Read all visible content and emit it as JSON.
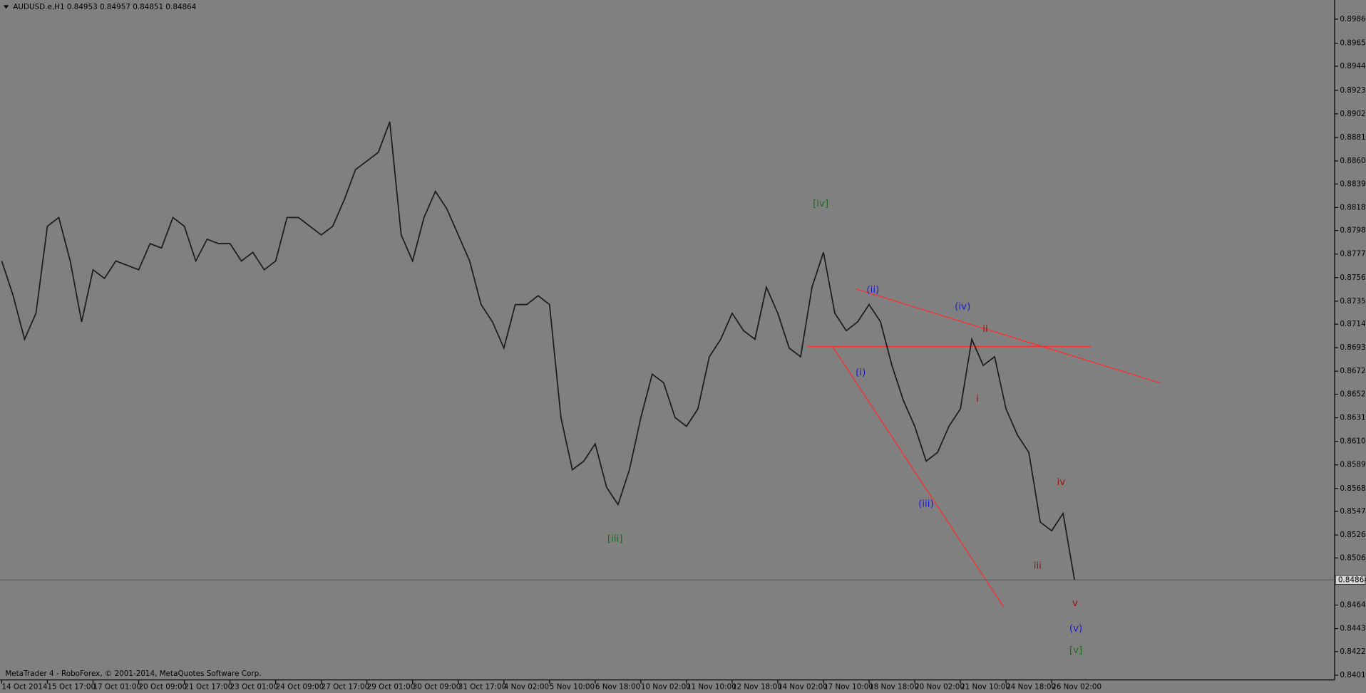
{
  "chart_data": {
    "type": "line",
    "title": "AUDUSD.e,H1  0.84953 0.84957 0.84851 0.84864",
    "footer": "MetaTrader 4 - RoboForex, © 2001-2014, MetaQuotes Software Corp.",
    "color": "#1a1a1a",
    "ylim": [
      0.8398,
      0.9002
    ],
    "yticks": [
      0.89865,
      {
        "value": 0.8965,
        "label": "0.89650"
      },
      0.89445,
      {
        "value": 0.8923,
        "label": "0.89230"
      },
      {
        "value": 0.8902,
        "label": "0.89020"
      },
      {
        "value": 0.8881,
        "label": "0.88810"
      },
      {
        "value": 0.886,
        "label": "0.88600"
      },
      0.88395,
      0.88185,
      {
        "value": 0.8798,
        "label": "0.87980"
      },
      {
        "value": 0.8777,
        "label": "0.87770"
      },
      {
        "value": 0.8756,
        "label": "0.87560"
      },
      {
        "value": 0.8735,
        "label": "0.87350"
      },
      0.87145,
      0.86935,
      0.86725,
      {
        "value": 0.8652,
        "label": "0.86520"
      },
      {
        "value": 0.8631,
        "label": "0.86310"
      },
      {
        "value": 0.861,
        "label": "0.86100"
      },
      {
        "value": 0.8589,
        "label": "0.85890"
      },
      {
        "value": 0.8568,
        "label": "0.85680"
      },
      0.85475,
      0.85265,
      {
        "value": 0.8506,
        "label": "0.85060"
      },
      {
        "value": 0.8464,
        "label": "0.84640"
      },
      {
        "value": 0.8443,
        "label": "0.84430"
      },
      0.84225,
      0.84015
    ],
    "grid": false,
    "categories": [
      "14 Oct 2014",
      null,
      null,
      null,
      "15 Oct 17:00",
      null,
      null,
      null,
      "17 Oct 01:00",
      null,
      null,
      null,
      "20 Oct 09:00",
      null,
      null,
      null,
      "21 Oct 17:00",
      null,
      null,
      null,
      "23 Oct 01:00",
      null,
      null,
      null,
      "24 Oct 09:00",
      null,
      null,
      null,
      "27 Oct 17:00",
      null,
      null,
      null,
      "29 Oct 01:00",
      null,
      null,
      null,
      "30 Oct 09:00",
      null,
      null,
      null,
      "31 Oct 17:00",
      null,
      null,
      null,
      "4 Nov 02:00",
      null,
      null,
      null,
      "5 Nov 10:00",
      null,
      null,
      null,
      "6 Nov 18:00",
      null,
      null,
      null,
      "10 Nov 02:00",
      null,
      null,
      null,
      "11 Nov 10:00",
      null,
      null,
      null,
      "12 Nov 18:00",
      null,
      null,
      null,
      "14 Nov 02:00",
      null,
      null,
      null,
      "17 Nov 10:00",
      null,
      null,
      null,
      "18 Nov 18:00",
      null,
      null,
      null,
      "20 Nov 02:00",
      null,
      null,
      null,
      "21 Nov 10:00",
      null,
      null,
      null,
      "24 Nov 18:00",
      null,
      null,
      null,
      "26 Nov 02:00",
      null,
      null
    ],
    "values": [
      0.87708,
      0.87398,
      0.8701,
      0.87242,
      0.88018,
      0.88096,
      0.87708,
      0.87165,
      0.8763,
      0.87553,
      0.87708,
      0.87669,
      0.8763,
      0.87863,
      0.87824,
      0.88096,
      0.88018,
      0.87708,
      0.87902,
      0.87863,
      0.87863,
      0.87708,
      0.87786,
      0.8763,
      0.87708,
      0.88096,
      0.88096,
      0.88018,
      0.87941,
      0.88018,
      0.88251,
      0.88523,
      0.886,
      0.88678,
      0.8895,
      0.87941,
      0.87708,
      0.88096,
      0.88329,
      0.88174,
      0.87941,
      0.87708,
      0.8732,
      0.87165,
      0.86932,
      0.8732,
      0.8732,
      0.87398,
      0.8732,
      0.86311,
      0.85846,
      0.85923,
      0.86078,
      0.8569,
      0.85535,
      0.85846,
      0.86311,
      0.86699,
      0.86622,
      0.86311,
      0.86234,
      0.86389,
      0.86854,
      0.8701,
      0.87242,
      0.87087,
      0.8701,
      0.87475,
      0.87242,
      0.86932,
      0.86854,
      0.87475,
      0.87786,
      0.87242,
      0.87087,
      0.87165,
      0.8732,
      0.87165,
      0.86777,
      0.86466,
      0.86234,
      0.85923,
      0.86001,
      0.86234,
      0.86389,
      0.8701,
      0.86777,
      0.86854,
      0.86389,
      0.86156,
      0.86001,
      0.8538,
      0.85302,
      0.85458,
      0.84864
    ],
    "annotations": [
      {
        "text": "[iv]",
        "color": "#1e6b1e"
      },
      {
        "text": "[iii]",
        "color": "#1e6b1e"
      },
      {
        "text": "(ii)",
        "color": "#1a1ad0"
      },
      {
        "text": "(i)",
        "color": "#1a1ad0"
      },
      {
        "text": "(iii)",
        "color": "#1a1ad0"
      },
      {
        "text": "(iv)",
        "color": "#1a1ad0"
      },
      {
        "text": "i",
        "color": "#9a1010"
      },
      {
        "text": "ii",
        "color": "#9a1010"
      },
      {
        "text": "iii",
        "color": "#9a1010"
      },
      {
        "text": "iv",
        "color": "#9a1010"
      },
      {
        "text": "v",
        "color": "#9a1010"
      },
      {
        "text": "(v)",
        "color": "#1a1ad0"
      },
      {
        "text": "[v]",
        "color": "#1e6b1e"
      }
    ]
  }
}
